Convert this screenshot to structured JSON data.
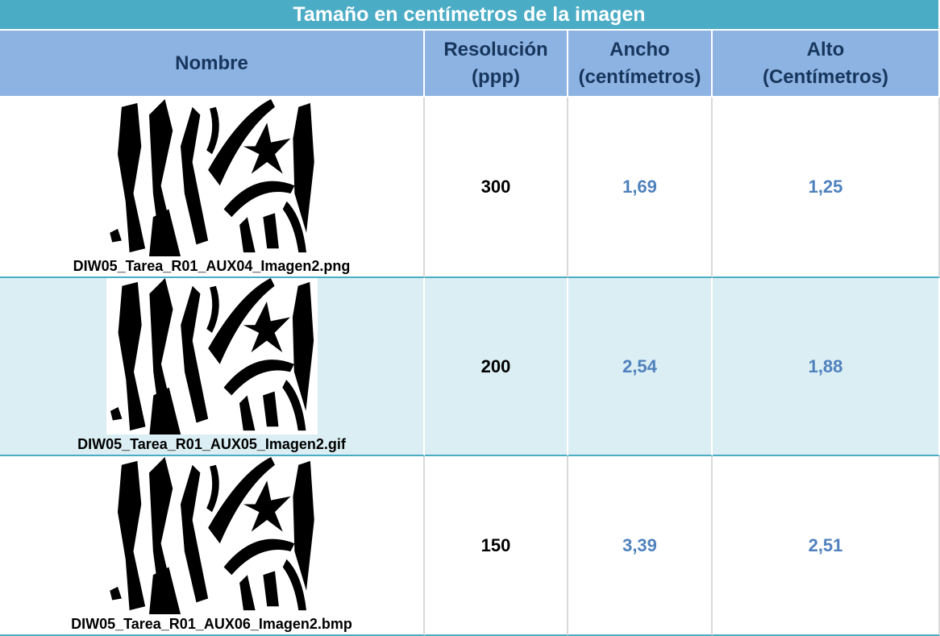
{
  "table": {
    "title": "Tamaño en centímetros de la imagen",
    "headers": [
      "Nombre",
      "Resolución (ppp)",
      "Ancho (centímetros)",
      "Alto (Centímetros)"
    ],
    "rows": [
      [
        "DIW05_Tarea_R01_AUX04_Imagen2.png",
        "300",
        "1,69",
        "1,25"
      ],
      [
        "DIW05_Tarea_R01_AUX05_Imagen2.gif",
        "200",
        "2,54",
        "1,88"
      ],
      [
        "DIW05_Tarea_R01_AUX06_Imagen2.bmp",
        "150",
        "3,39",
        "2,51"
      ]
    ]
  }
}
